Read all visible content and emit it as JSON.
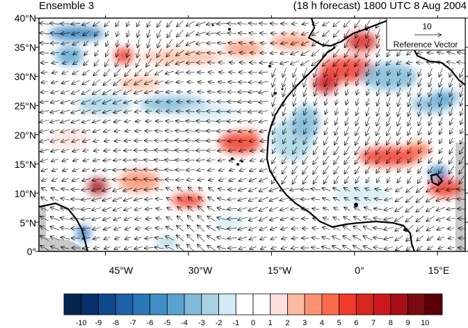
{
  "header": {
    "left_title": "Ensemble 3",
    "right_title": "(18 h forecast) 1800 UTC 8 Aug 2004"
  },
  "map": {
    "lat_ticks": [
      "40°N",
      "35°N",
      "30°N",
      "25°N",
      "20°N",
      "15°N",
      "10°N",
      "5°N",
      "0°"
    ],
    "lon_ticks": [
      "45°W",
      "30°W",
      "15°W",
      "0°",
      "15°E"
    ],
    "extent": {
      "lon": [
        -57,
        20
      ],
      "lat": [
        0,
        40
      ]
    }
  },
  "reference_vector": {
    "magnitude": "10",
    "label": "Reference Vector"
  },
  "colorbar": {
    "labels": [
      "-10",
      "-9",
      "-8",
      "-7",
      "-6",
      "-5",
      "-4",
      "-3",
      "-2",
      "-1",
      "0",
      "1",
      "2",
      "3",
      "4",
      "5",
      "6",
      "7",
      "8",
      "9",
      "10"
    ],
    "colors": [
      "#05254f",
      "#08306b",
      "#0d4a8c",
      "#1d62a6",
      "#2b78b8",
      "#3f8fc5",
      "#5ba3cf",
      "#7fbad8",
      "#a6d1e3",
      "#d3ebf5",
      "#ffffff",
      "#ffffff",
      "#fde0dd",
      "#fcbba1",
      "#fc9272",
      "#fb6a4a",
      "#ef3b2c",
      "#d7261e",
      "#cb181d",
      "#a50f15",
      "#7a0a10",
      "#5c0008"
    ]
  },
  "colors": {
    "coast": "#000000",
    "land_mask": "#c8c8c8"
  }
}
